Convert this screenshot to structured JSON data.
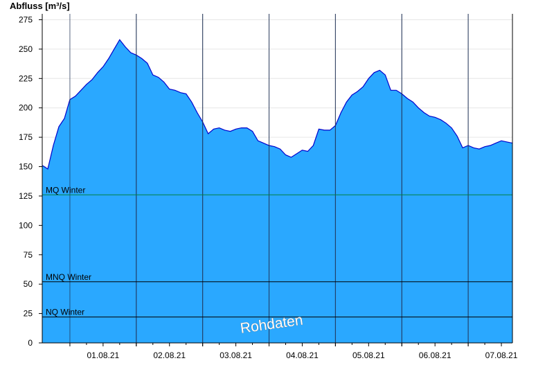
{
  "chart_data": {
    "type": "area",
    "title": "",
    "ylabel": "Abfluss [m³/s]",
    "xlabel": "",
    "ylim": [
      0,
      280
    ],
    "yticks": [
      0,
      25,
      50,
      75,
      100,
      125,
      150,
      175,
      200,
      225,
      250,
      275
    ],
    "grid": true,
    "x_tick_labels": [
      "01.08.21",
      "02.08.21",
      "03.08.21",
      "04.08.21",
      "05.08.21",
      "06.08.21",
      "07.08.21"
    ],
    "x_time_range": [
      "2021-07-31T14:00",
      "2021-08-07T16:00"
    ],
    "series": [
      {
        "color": "#2aa8ff",
        "edge_color": "#0000cc",
        "x": [
          "2021-07-31T14:00",
          "2021-07-31T16:00",
          "2021-07-31T18:00",
          "2021-07-31T20:00",
          "2021-07-31T22:00",
          "2021-08-01T00:00",
          "2021-08-01T02:00",
          "2021-08-01T04:00",
          "2021-08-01T06:00",
          "2021-08-01T08:00",
          "2021-08-01T10:00",
          "2021-08-01T12:00",
          "2021-08-01T14:00",
          "2021-08-01T16:00",
          "2021-08-01T18:00",
          "2021-08-01T20:00",
          "2021-08-01T22:00",
          "2021-08-02T00:00",
          "2021-08-02T02:00",
          "2021-08-02T04:00",
          "2021-08-02T06:00",
          "2021-08-02T08:00",
          "2021-08-02T10:00",
          "2021-08-02T12:00",
          "2021-08-02T14:00",
          "2021-08-02T16:00",
          "2021-08-02T18:00",
          "2021-08-02T20:00",
          "2021-08-02T22:00",
          "2021-08-03T00:00",
          "2021-08-03T02:00",
          "2021-08-03T04:00",
          "2021-08-03T06:00",
          "2021-08-03T08:00",
          "2021-08-03T10:00",
          "2021-08-03T12:00",
          "2021-08-03T14:00",
          "2021-08-03T16:00",
          "2021-08-03T18:00",
          "2021-08-03T20:00",
          "2021-08-03T22:00",
          "2021-08-04T00:00",
          "2021-08-04T02:00",
          "2021-08-04T04:00",
          "2021-08-04T06:00",
          "2021-08-04T08:00",
          "2021-08-04T10:00",
          "2021-08-04T12:00",
          "2021-08-04T14:00",
          "2021-08-04T16:00",
          "2021-08-04T18:00",
          "2021-08-04T20:00",
          "2021-08-04T22:00",
          "2021-08-05T00:00",
          "2021-08-05T02:00",
          "2021-08-05T04:00",
          "2021-08-05T06:00",
          "2021-08-05T08:00",
          "2021-08-05T10:00",
          "2021-08-05T12:00",
          "2021-08-05T14:00",
          "2021-08-05T16:00",
          "2021-08-05T18:00",
          "2021-08-05T20:00",
          "2021-08-05T22:00",
          "2021-08-06T00:00",
          "2021-08-06T02:00",
          "2021-08-06T04:00",
          "2021-08-06T06:00",
          "2021-08-06T08:00",
          "2021-08-06T10:00",
          "2021-08-06T12:00",
          "2021-08-06T14:00",
          "2021-08-06T16:00",
          "2021-08-06T18:00",
          "2021-08-06T20:00",
          "2021-08-06T22:00",
          "2021-08-07T00:00",
          "2021-08-07T02:00",
          "2021-08-07T04:00",
          "2021-08-07T06:00",
          "2021-08-07T08:00",
          "2021-08-07T10:00",
          "2021-08-07T12:00",
          "2021-08-07T14:00",
          "2021-08-07T16:00"
        ],
        "values": [
          151,
          148,
          168,
          184,
          191,
          207,
          210,
          215,
          220,
          224,
          230,
          235,
          242,
          250,
          258,
          252,
          247,
          245,
          242,
          238,
          228,
          226,
          222,
          216,
          215,
          213,
          212,
          205,
          196,
          188,
          178,
          182,
          183,
          181,
          180,
          182,
          183,
          183,
          180,
          172,
          170,
          168,
          167,
          165,
          160,
          158,
          161,
          164,
          163,
          168,
          182,
          181,
          181,
          185,
          196,
          205,
          211,
          214,
          218,
          225,
          230,
          232,
          228,
          215,
          215,
          212,
          208,
          205,
          200,
          196,
          193,
          192,
          190,
          187,
          183,
          176,
          166,
          168,
          166,
          165,
          167,
          168,
          170,
          172,
          171,
          170
        ]
      }
    ],
    "reference_lines": [
      {
        "label": "MQ Winter",
        "value": 126,
        "color": "#008040"
      },
      {
        "label": "MNQ Winter",
        "value": 52,
        "color": "#000000"
      },
      {
        "label": "NQ Winter",
        "value": 22,
        "color": "#000000"
      }
    ],
    "watermark": "Rohdaten"
  }
}
